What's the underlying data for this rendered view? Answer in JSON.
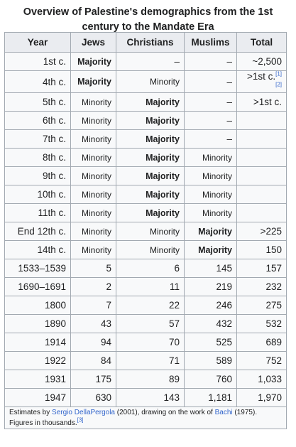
{
  "caption": "Overview of Palestine's demographics from the 1st century to the Mandate Era",
  "headers": [
    "Year",
    "Jews",
    "Christians",
    "Muslims",
    "Total"
  ],
  "rows": [
    {
      "year": "1st c.",
      "jews": "Majority",
      "christians": "–",
      "muslims": "–",
      "total": "~2,500"
    },
    {
      "year": "4th c.",
      "jews": "Majority",
      "christians": "Minority",
      "muslims": "–",
      "total": ">1st c.",
      "total_ref": "[1][2]"
    },
    {
      "year": "5th c.",
      "jews": "Minority",
      "christians": "Majority",
      "muslims": "–",
      "total": ">1st c."
    },
    {
      "year": "6th c.",
      "jews": "Minority",
      "christians": "Majority",
      "muslims": "–",
      "total": ""
    },
    {
      "year": "7th c.",
      "jews": "Minority",
      "christians": "Majority",
      "muslims": "–",
      "total": ""
    },
    {
      "year": "8th c.",
      "jews": "Minority",
      "christians": "Majority",
      "muslims": "Minority",
      "total": ""
    },
    {
      "year": "9th c.",
      "jews": "Minority",
      "christians": "Majority",
      "muslims": "Minority",
      "total": ""
    },
    {
      "year": "10th c.",
      "jews": "Minority",
      "christians": "Majority",
      "muslims": "Minority",
      "total": ""
    },
    {
      "year": "11th c.",
      "jews": "Minority",
      "christians": "Majority",
      "muslims": "Minority",
      "total": ""
    },
    {
      "year": "End 12th c.",
      "jews": "Minority",
      "christians": "Minority",
      "muslims": "Majority",
      "total": ">225"
    },
    {
      "year": "14th c.",
      "jews": "Minority",
      "christians": "Minority",
      "muslims": "Majority",
      "total": "150"
    },
    {
      "year": "1533–1539",
      "jews": "5",
      "christians": "6",
      "muslims": "145",
      "total": "157"
    },
    {
      "year": "1690–1691",
      "jews": "2",
      "christians": "11",
      "muslims": "219",
      "total": "232"
    },
    {
      "year": "1800",
      "jews": "7",
      "christians": "22",
      "muslims": "246",
      "total": "275"
    },
    {
      "year": "1890",
      "jews": "43",
      "christians": "57",
      "muslims": "432",
      "total": "532"
    },
    {
      "year": "1914",
      "jews": "94",
      "christians": "70",
      "muslims": "525",
      "total": "689"
    },
    {
      "year": "1922",
      "jews": "84",
      "christians": "71",
      "muslims": "589",
      "total": "752"
    },
    {
      "year": "1931",
      "jews": "175",
      "christians": "89",
      "muslims": "760",
      "total": "1,033"
    },
    {
      "year": "1947",
      "jews": "630",
      "christians": "143",
      "muslims": "1,181",
      "total": "1,970"
    }
  ],
  "note": {
    "prefix": "Estimates by ",
    "author1": "Sergio DellaPergola",
    "middle": " (2001), drawing on the work of ",
    "author2": "Bachi",
    "suffix": " (1975). Figures in thousands.",
    "ref": "[3]"
  },
  "colors": {
    "border": "#a2a9b1",
    "header_bg": "#eaecf0",
    "cell_bg": "#f8f9fa",
    "link": "#3366cc"
  }
}
